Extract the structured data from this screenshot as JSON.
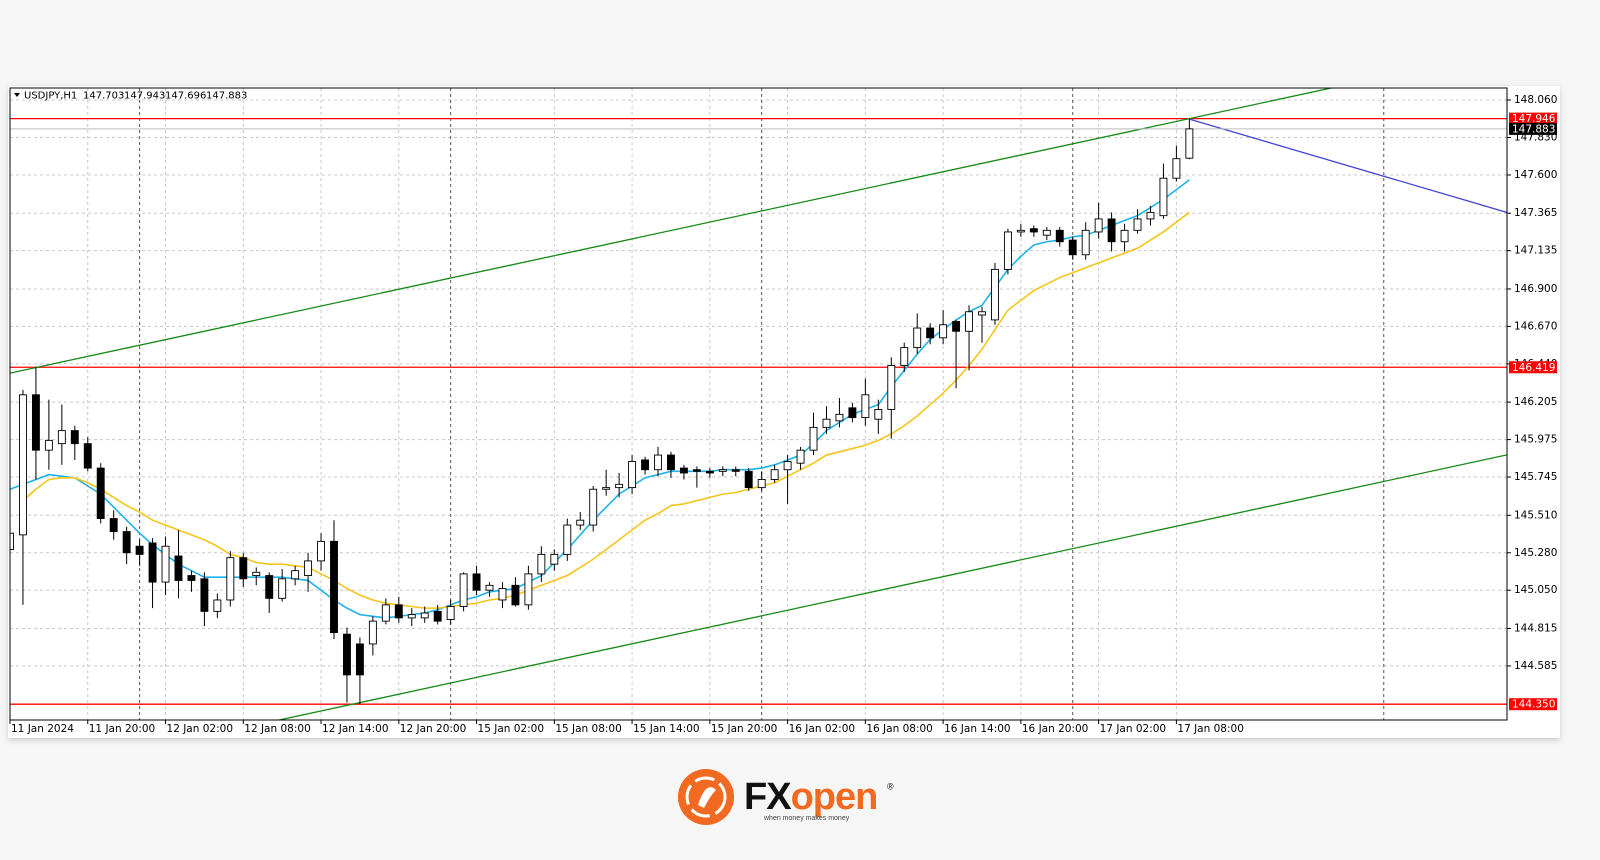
{
  "chart_data": {
    "type": "candlestick",
    "symbol": "USDJPY,H1",
    "categories": [
      "11 Jan 2024",
      null,
      null,
      null,
      null,
      null,
      "11 Jan 20:00",
      null,
      null,
      null,
      null,
      null,
      "12 Jan 02:00",
      null,
      null,
      null,
      null,
      null,
      "12 Jan 08:00",
      null,
      null,
      null,
      null,
      null,
      "12 Jan 14:00",
      null,
      null,
      null,
      null,
      null,
      "12 Jan 20:00",
      null,
      null,
      null,
      null,
      null,
      "15 Jan 02:00",
      null,
      null,
      null,
      null,
      null,
      "15 Jan 08:00",
      null,
      null,
      null,
      null,
      null,
      "15 Jan 14:00",
      null,
      null,
      null,
      null,
      null,
      "15 Jan 20:00",
      null,
      null,
      null,
      null,
      null,
      "16 Jan 02:00",
      null,
      null,
      null,
      null,
      null,
      "16 Jan 08:00",
      null,
      null,
      null,
      null,
      null,
      "16 Jan 14:00",
      null,
      null,
      null,
      null,
      null,
      "16 Jan 20:00",
      null,
      null,
      null,
      null,
      null,
      "17 Jan 02:00",
      null,
      null,
      null,
      null,
      null,
      "17 Jan 08:00",
      null
    ],
    "open": [
      145.3,
      145.39,
      146.25,
      145.91,
      145.95,
      146.03,
      145.95,
      145.8,
      145.49,
      145.41,
      145.32,
      145.34,
      145.1,
      145.26,
      145.14,
      145.12,
      144.92,
      144.99,
      145.25,
      145.14,
      145.14,
      145.0,
      145.12,
      145.14,
      145.23,
      145.35,
      144.78,
      144.72,
      144.72,
      144.86,
      144.96,
      144.88,
      144.88,
      144.92,
      144.87,
      144.95,
      145.15,
      145.05,
      144.99,
      145.08,
      144.96,
      145.15,
      145.21,
      145.27,
      145.45,
      145.45,
      145.67,
      145.68,
      145.68,
      145.85,
      145.79,
      145.88,
      145.8,
      145.79,
      145.78,
      145.78,
      145.79,
      145.78,
      145.68,
      145.73,
      145.79,
      145.83,
      145.91,
      146.05,
      146.09,
      146.17,
      146.11,
      146.1,
      146.16,
      146.43,
      146.54,
      146.66,
      146.6,
      146.7,
      146.64,
      146.74,
      146.71,
      147.02,
      147.25,
      147.27,
      147.23,
      147.26,
      147.2,
      147.11,
      147.25,
      147.33,
      147.19,
      147.26,
      147.33,
      147.35,
      147.58,
      147.703
    ],
    "high": [
      145.45,
      146.28,
      146.42,
      146.22,
      146.19,
      146.06,
      145.99,
      145.83,
      145.54,
      145.44,
      145.36,
      145.37,
      145.38,
      145.42,
      145.17,
      145.16,
      145.03,
      145.29,
      145.28,
      145.19,
      145.16,
      145.18,
      145.2,
      145.28,
      145.4,
      145.48,
      144.82,
      144.76,
      144.89,
      145.0,
      145.01,
      144.94,
      144.95,
      144.96,
      144.99,
      145.16,
      145.2,
      145.1,
      145.1,
      145.13,
      145.2,
      145.32,
      145.3,
      145.49,
      145.53,
      145.69,
      145.79,
      145.77,
      145.88,
      145.87,
      145.93,
      145.9,
      145.82,
      145.81,
      145.8,
      145.81,
      145.81,
      145.8,
      145.78,
      145.82,
      145.88,
      145.93,
      146.14,
      146.18,
      146.23,
      146.2,
      146.35,
      146.22,
      146.48,
      146.57,
      146.75,
      146.69,
      146.77,
      146.71,
      146.8,
      146.79,
      147.06,
      147.27,
      147.3,
      147.29,
      147.28,
      147.28,
      147.22,
      147.31,
      147.43,
      147.37,
      147.3,
      147.39,
      147.41,
      147.67,
      147.78,
      147.943
    ],
    "low": [
      145.2,
      144.96,
      145.73,
      145.79,
      145.82,
      145.85,
      145.78,
      145.46,
      145.36,
      145.21,
      145.2,
      144.94,
      145.02,
      145.0,
      145.04,
      144.83,
      144.88,
      144.95,
      145.07,
      145.08,
      144.91,
      144.98,
      145.08,
      145.04,
      145.17,
      144.75,
      144.36,
      144.35,
      144.65,
      144.84,
      144.85,
      144.83,
      144.85,
      144.84,
      144.84,
      144.92,
      145.02,
      145.01,
      144.94,
      144.95,
      144.93,
      145.1,
      145.17,
      145.23,
      145.42,
      145.41,
      145.63,
      145.62,
      145.64,
      145.76,
      145.75,
      145.74,
      145.73,
      145.68,
      145.74,
      145.75,
      145.75,
      145.66,
      145.66,
      145.71,
      145.58,
      145.79,
      145.88,
      146.01,
      146.05,
      146.08,
      146.06,
      146.01,
      145.98,
      146.39,
      146.5,
      146.56,
      146.56,
      146.29,
      146.4,
      146.57,
      146.68,
      146.99,
      147.22,
      147.22,
      147.2,
      147.16,
      147.08,
      147.08,
      147.21,
      147.13,
      147.13,
      147.24,
      147.29,
      147.33,
      147.56,
      147.696
    ],
    "close": [
      145.4,
      146.25,
      145.91,
      145.97,
      146.03,
      145.95,
      145.8,
      145.49,
      145.41,
      145.28,
      145.27,
      145.1,
      145.32,
      145.11,
      145.11,
      144.92,
      144.99,
      145.25,
      145.12,
      145.16,
      145.0,
      145.12,
      145.17,
      145.23,
      145.35,
      144.79,
      144.53,
      144.53,
      144.86,
      144.96,
      144.88,
      144.9,
      144.91,
      144.86,
      144.95,
      145.15,
      145.05,
      145.08,
      145.06,
      144.96,
      145.15,
      145.27,
      145.27,
      145.45,
      145.48,
      145.67,
      145.68,
      145.7,
      145.84,
      145.79,
      145.88,
      145.79,
      145.77,
      145.78,
      145.77,
      145.79,
      145.78,
      145.68,
      145.73,
      145.79,
      145.84,
      145.91,
      146.05,
      146.1,
      146.13,
      146.11,
      146.25,
      146.16,
      146.43,
      146.54,
      146.66,
      146.6,
      146.68,
      146.64,
      146.76,
      146.76,
      147.02,
      147.25,
      147.26,
      147.25,
      147.26,
      147.19,
      147.11,
      147.26,
      147.33,
      147.19,
      147.26,
      147.33,
      147.37,
      147.58,
      147.7,
      147.883
    ],
    "up_color": "#ffffff",
    "down_color": "#000000",
    "moving_averages": [
      {
        "color": "#1fb2e8",
        "values": [
          145.67,
          145.7,
          145.73,
          145.76,
          145.75,
          145.74,
          145.69,
          145.64,
          145.56,
          145.48,
          145.4,
          145.33,
          145.27,
          145.21,
          145.17,
          145.13,
          145.13,
          145.13,
          145.13,
          145.13,
          145.13,
          145.13,
          145.12,
          145.11,
          145.05,
          144.99,
          144.94,
          144.9,
          144.89,
          144.88,
          144.89,
          144.9,
          144.91,
          144.93,
          144.96,
          144.99,
          145.01,
          145.04,
          145.05,
          145.06,
          145.1,
          145.14,
          145.22,
          145.3,
          145.39,
          145.48,
          145.56,
          145.64,
          145.69,
          145.74,
          145.76,
          145.78,
          145.78,
          145.78,
          145.78,
          145.79,
          145.79,
          145.79,
          145.8,
          145.82,
          145.85,
          145.88,
          145.95,
          146.03,
          146.08,
          146.13,
          146.16,
          146.19,
          146.3,
          146.4,
          146.5,
          146.59,
          146.65,
          146.71,
          146.76,
          146.8,
          146.91,
          147.02,
          147.1,
          147.17,
          147.19,
          147.2,
          147.22,
          147.23,
          147.26,
          147.29,
          147.32,
          147.35,
          147.4,
          147.45,
          147.51,
          147.57
        ]
      },
      {
        "color": "#f5c518",
        "values": [
          null,
          145.6,
          145.67,
          145.73,
          145.74,
          145.74,
          145.71,
          145.67,
          145.62,
          145.57,
          145.53,
          145.48,
          145.45,
          145.42,
          145.39,
          145.36,
          145.32,
          145.27,
          145.25,
          145.22,
          145.21,
          145.21,
          145.2,
          145.19,
          145.15,
          145.11,
          145.06,
          145.02,
          144.99,
          144.97,
          144.96,
          144.95,
          144.94,
          144.94,
          144.95,
          144.96,
          144.97,
          144.99,
          145.0,
          145.02,
          145.05,
          145.08,
          145.11,
          145.14,
          145.19,
          145.24,
          145.3,
          145.36,
          145.42,
          145.48,
          145.52,
          145.57,
          145.58,
          145.6,
          145.62,
          145.64,
          145.65,
          145.67,
          145.69,
          145.71,
          145.75,
          145.79,
          145.83,
          145.88,
          145.9,
          145.92,
          145.94,
          145.97,
          146.01,
          146.06,
          146.12,
          146.19,
          146.26,
          146.34,
          146.43,
          146.53,
          146.65,
          146.77,
          146.83,
          146.89,
          146.93,
          146.97,
          147.0,
          147.03,
          147.06,
          147.09,
          147.12,
          147.15,
          147.2,
          147.25,
          147.31,
          147.37
        ]
      }
    ],
    "levels": [
      {
        "value": 147.946,
        "color": "#ff0000"
      },
      {
        "value": 146.419,
        "color": "#ff0000"
      },
      {
        "value": 144.35,
        "label": "144.350",
        "color": "#ff0000"
      }
    ],
    "trendlines": [
      {
        "color": "#158a15",
        "extend": "both",
        "points": [
          [
            1,
            146.4
          ],
          [
            91,
            147.946
          ]
        ]
      },
      {
        "color": "#158a15",
        "extend": "both",
        "points": [
          [
            27,
            144.36
          ],
          [
            91,
            145.46
          ]
        ]
      },
      {
        "color": "#4545d8",
        "extend": "right",
        "points": [
          [
            91,
            147.943
          ],
          [
            115.5,
            147.37
          ]
        ]
      }
    ],
    "ylim": [
      144.253,
      148.134
    ],
    "yticks": [
      {
        "value": 148.06,
        "label": "148.060"
      },
      {
        "value": 147.83,
        "label": "147.830"
      },
      {
        "value": 147.6,
        "label": "147.600"
      },
      147.365,
      147.135,
      {
        "value": 146.9,
        "label": "146.900"
      },
      {
        "value": 146.67,
        "label": "146.670"
      },
      {
        "value": 146.44,
        "label": "146.440"
      },
      146.205,
      145.975,
      145.745,
      {
        "value": 145.51,
        "label": "145.510"
      },
      {
        "value": 145.28,
        "label": "145.280"
      },
      {
        "value": 145.05,
        "label": "145.050"
      },
      144.815,
      144.585
    ],
    "grid": true
  },
  "footer": {
    "brand_fx": "FX",
    "brand_open": "open",
    "registered": "®",
    "tagline": "when money makes money"
  }
}
